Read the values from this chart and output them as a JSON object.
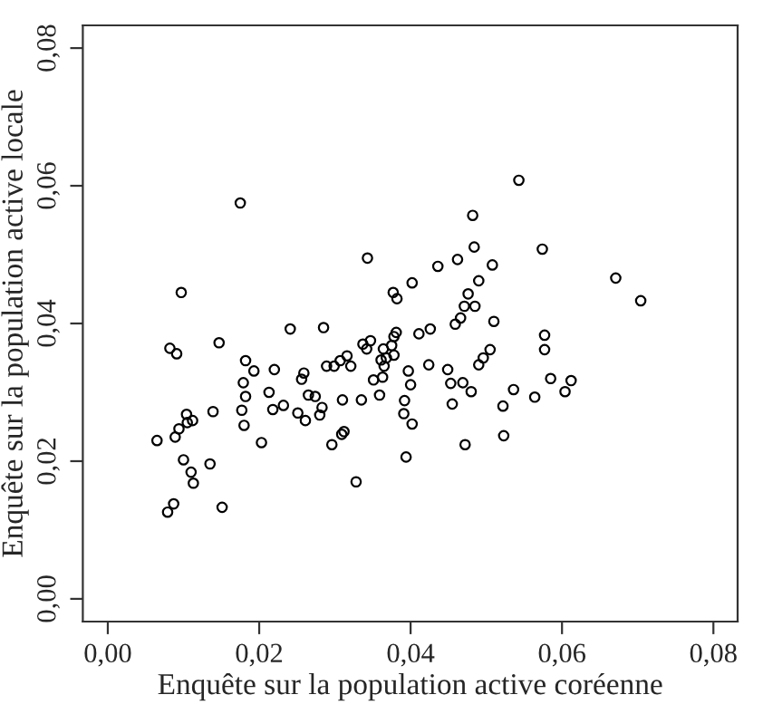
{
  "chart_data": {
    "type": "scatter",
    "xlabel": "Enquête sur la population active coréenne",
    "ylabel": "Enquête sur la population active locale",
    "xlim": [
      -0.0033,
      0.0832
    ],
    "ylim": [
      -0.0033,
      0.0833
    ],
    "xticks": [
      {
        "value": 0,
        "label": "0,00"
      },
      {
        "value": 0.02,
        "label": "0,02"
      },
      {
        "value": 0.04,
        "label": "0,04"
      },
      {
        "value": 0.06,
        "label": "0,06"
      },
      {
        "value": 0.08,
        "label": "0,08"
      }
    ],
    "yticks": [
      {
        "value": 0,
        "label": "0,00"
      },
      {
        "value": 0.02,
        "label": "0,02"
      },
      {
        "value": 0.04,
        "label": "0,04"
      },
      {
        "value": 0.06,
        "label": "0,06"
      },
      {
        "value": 0.08,
        "label": "0,08"
      }
    ],
    "grid": false,
    "legend": false,
    "marker": "circle",
    "series": [
      {
        "color": "#000000",
        "x": [
          0.0065,
          0.0082,
          0.0091,
          0.0097,
          0.0079,
          0.0087,
          0.0089,
          0.0094,
          0.0104,
          0.0105,
          0.0112,
          0.01,
          0.011,
          0.0113,
          0.0135,
          0.0139,
          0.0147,
          0.0151,
          0.0175,
          0.0177,
          0.018,
          0.0179,
          0.0182,
          0.0182,
          0.0193,
          0.0203,
          0.0213,
          0.0218,
          0.022,
          0.0232,
          0.0241,
          0.0251,
          0.0256,
          0.0259,
          0.0261,
          0.0265,
          0.0274,
          0.028,
          0.0283,
          0.0285,
          0.0289,
          0.0296,
          0.0299,
          0.0307,
          0.031,
          0.0309,
          0.0312,
          0.0316,
          0.0321,
          0.0328,
          0.0335,
          0.0337,
          0.0342,
          0.0343,
          0.0347,
          0.0351,
          0.0359,
          0.0361,
          0.0363,
          0.0364,
          0.0365,
          0.0368,
          0.0375,
          0.0378,
          0.0378,
          0.0381,
          0.0377,
          0.0382,
          0.0391,
          0.0392,
          0.0394,
          0.0397,
          0.04,
          0.0402,
          0.0402,
          0.0411,
          0.0424,
          0.0426,
          0.0436,
          0.0449,
          0.0453,
          0.0455,
          0.0459,
          0.0462,
          0.0466,
          0.0469,
          0.0471,
          0.0472,
          0.0476,
          0.048,
          0.0482,
          0.0484,
          0.0485,
          0.049,
          0.049,
          0.0496,
          0.0505,
          0.0508,
          0.051,
          0.0522,
          0.0523,
          0.0536,
          0.0543,
          0.0564,
          0.0574,
          0.0577,
          0.0577,
          0.0585,
          0.0604,
          0.0612,
          0.0671,
          0.0704
        ],
        "values": [
          0.023,
          0.0364,
          0.0356,
          0.0445,
          0.0126,
          0.0138,
          0.0235,
          0.0247,
          0.0268,
          0.0256,
          0.0259,
          0.0202,
          0.0184,
          0.0168,
          0.0196,
          0.0272,
          0.0372,
          0.0133,
          0.0575,
          0.0274,
          0.0252,
          0.0314,
          0.0294,
          0.0346,
          0.0331,
          0.0227,
          0.03,
          0.0275,
          0.0333,
          0.0281,
          0.0392,
          0.027,
          0.0319,
          0.0328,
          0.0259,
          0.0296,
          0.0294,
          0.0267,
          0.0278,
          0.0394,
          0.0338,
          0.0224,
          0.0338,
          0.0346,
          0.0289,
          0.0239,
          0.0243,
          0.0353,
          0.0338,
          0.017,
          0.0289,
          0.037,
          0.0363,
          0.0495,
          0.0375,
          0.0318,
          0.0296,
          0.0347,
          0.0322,
          0.0363,
          0.0338,
          0.035,
          0.0368,
          0.0354,
          0.0381,
          0.0387,
          0.0445,
          0.0436,
          0.0269,
          0.0288,
          0.0206,
          0.0331,
          0.0311,
          0.0254,
          0.0459,
          0.0385,
          0.034,
          0.0392,
          0.0483,
          0.0333,
          0.0313,
          0.0283,
          0.0399,
          0.0493,
          0.0408,
          0.0314,
          0.0425,
          0.0224,
          0.0443,
          0.0301,
          0.0557,
          0.0511,
          0.0425,
          0.0462,
          0.034,
          0.035,
          0.0362,
          0.0485,
          0.0403,
          0.028,
          0.0237,
          0.0304,
          0.0608,
          0.0293,
          0.0508,
          0.0383,
          0.0362,
          0.032,
          0.0301,
          0.0317,
          0.0466,
          0.0433
        ]
      }
    ]
  }
}
